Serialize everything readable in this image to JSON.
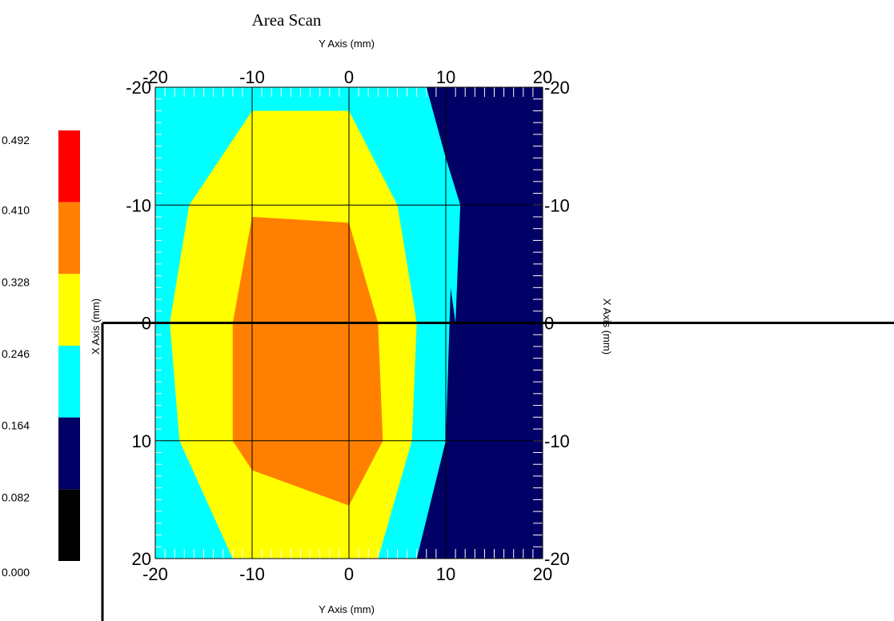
{
  "chart_data": {
    "type": "heatmap",
    "title": "Area Scan",
    "top_axis_label": "Y Axis (mm)",
    "bottom_axis_label": "Y Axis (mm)",
    "left_axis_label": "X Axis (mm)",
    "right_axis_label": "X Axis (mm)",
    "y_axis_range": [
      -20,
      20
    ],
    "x_axis_range": [
      -20,
      20
    ],
    "y_axis_ticks": [
      -20,
      -10,
      0,
      10,
      20
    ],
    "x_axis_ticks": [
      -20,
      -10,
      0,
      10,
      20
    ],
    "right_tick_labels": [
      "-20",
      "-10",
      "0",
      "-10",
      "-20"
    ],
    "grid": true,
    "colorbar": {
      "ticks": [
        "0.492",
        "0.410",
        "0.328",
        "0.246",
        "0.164",
        "0.082",
        "0.000"
      ],
      "colors": [
        "#ff0000",
        "#ff8000",
        "#ffff00",
        "#00ffff",
        "#000066",
        "#000000"
      ]
    },
    "contours": [
      {
        "band": "0.164-0.246",
        "color": "#000066",
        "points": [
          [
            8,
            -20
          ],
          [
            20,
            -20
          ],
          [
            20,
            20
          ],
          [
            7,
            20
          ]
        ]
      },
      {
        "band": "0.246-0.328",
        "color": "#00ffff",
        "points": [
          [
            -20,
            -20
          ],
          [
            8,
            -20
          ],
          [
            10,
            -14
          ],
          [
            11.5,
            -10
          ],
          [
            11,
            0
          ],
          [
            10.5,
            -3
          ],
          [
            10,
            10
          ],
          [
            7,
            20
          ],
          [
            -20,
            20
          ]
        ]
      },
      {
        "band": "0.328-0.410",
        "color": "#ffff00",
        "points": [
          [
            -10,
            -18
          ],
          [
            0,
            -18
          ],
          [
            5,
            -10
          ],
          [
            7,
            0
          ],
          [
            6.5,
            10
          ],
          [
            3,
            20
          ],
          [
            -12,
            20
          ],
          [
            -17.5,
            10
          ],
          [
            -18.5,
            0
          ],
          [
            -16.5,
            -10
          ]
        ]
      },
      {
        "band": "0.410-0.492",
        "color": "#ff8000",
        "points": [
          [
            -10,
            -9
          ],
          [
            0,
            -8.5
          ],
          [
            3,
            0
          ],
          [
            3.5,
            10
          ],
          [
            0,
            15.5
          ],
          [
            -10,
            12.5
          ],
          [
            -12,
            10
          ],
          [
            -12,
            0
          ]
        ]
      }
    ]
  }
}
